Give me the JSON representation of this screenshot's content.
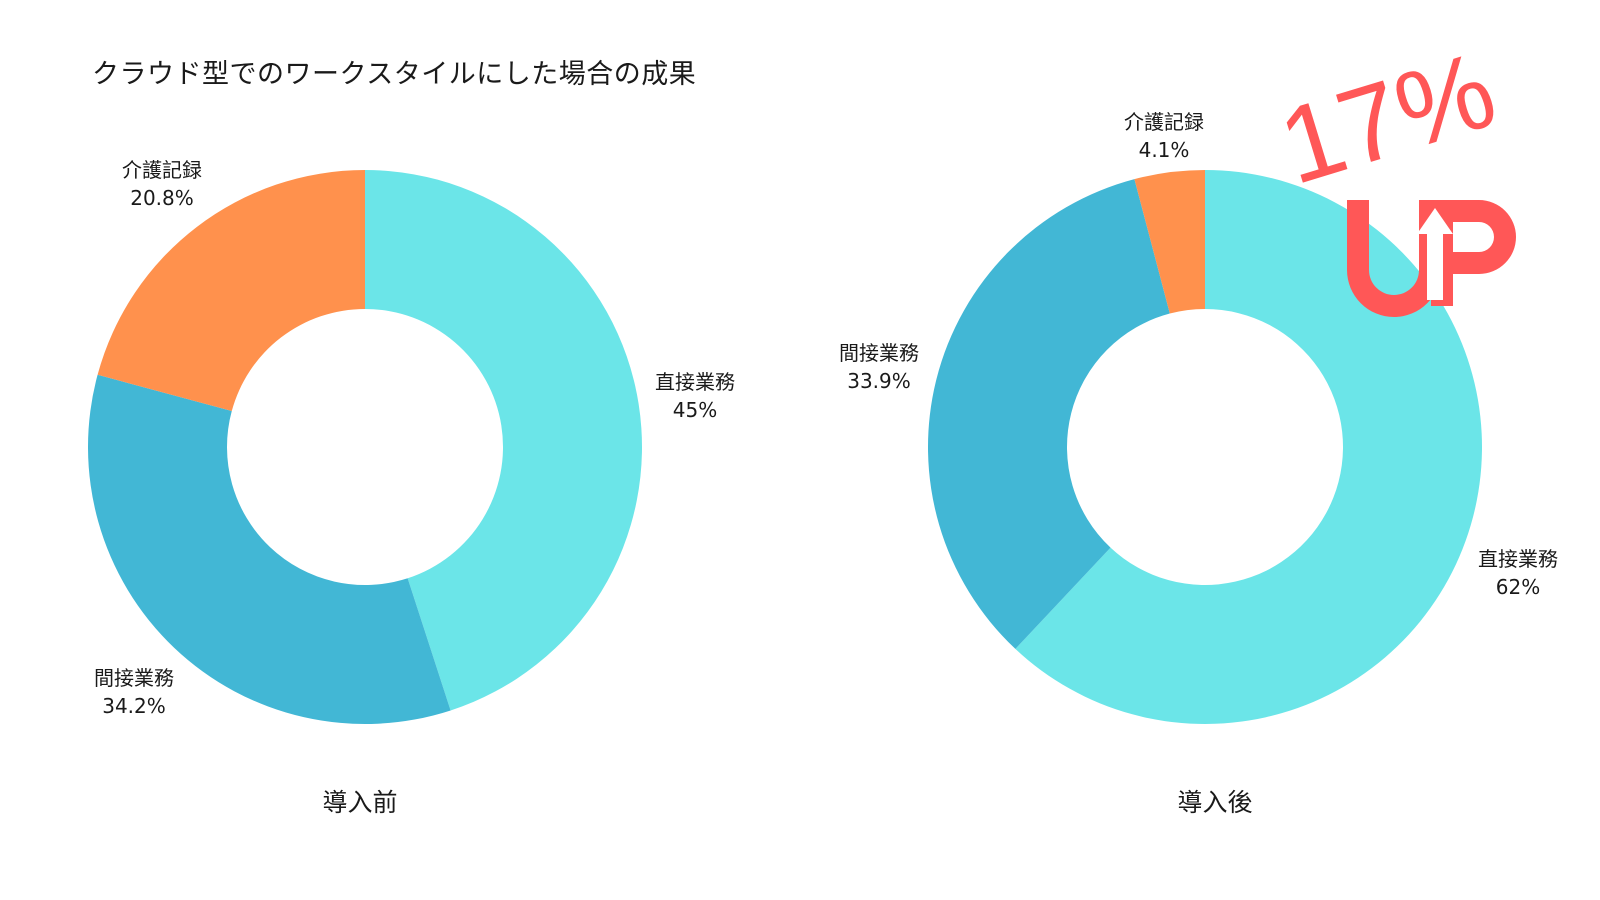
{
  "title": "クラウド型でのワークスタイルにした場合の成果",
  "colors": {
    "direct": "#6be5e8",
    "indirect": "#42b7d5",
    "care_record": "#ff914d",
    "badge": "#ff5757"
  },
  "badge": {
    "percent": "17%",
    "text": "UP"
  },
  "charts": [
    {
      "subtitle": "導入前",
      "slices": [
        {
          "label": "直接業務",
          "value_label": "45%"
        },
        {
          "label": "間接業務",
          "value_label": "34.2%"
        },
        {
          "label": "介護記録",
          "value_label": "20.8%"
        }
      ]
    },
    {
      "subtitle": "導入後",
      "slices": [
        {
          "label": "直接業務",
          "value_label": "62%"
        },
        {
          "label": "間接業務",
          "value_label": "33.9%"
        },
        {
          "label": "介護記録",
          "value_label": "4.1%"
        }
      ]
    }
  ],
  "chart_data": [
    {
      "type": "pie",
      "style": "donut",
      "title": "導入前",
      "categories": [
        "直接業務",
        "間接業務",
        "介護記録"
      ],
      "values": [
        45,
        34.2,
        20.8
      ],
      "colors": [
        "#6be5e8",
        "#42b7d5",
        "#ff914d"
      ],
      "start_angle": "top, clockwise"
    },
    {
      "type": "pie",
      "style": "donut",
      "title": "導入後",
      "categories": [
        "直接業務",
        "間接業務",
        "介護記録"
      ],
      "values": [
        62,
        33.9,
        4.1
      ],
      "colors": [
        "#6be5e8",
        "#42b7d5",
        "#ff914d"
      ],
      "start_angle": "top, clockwise",
      "annotation": "17% UP"
    }
  ]
}
